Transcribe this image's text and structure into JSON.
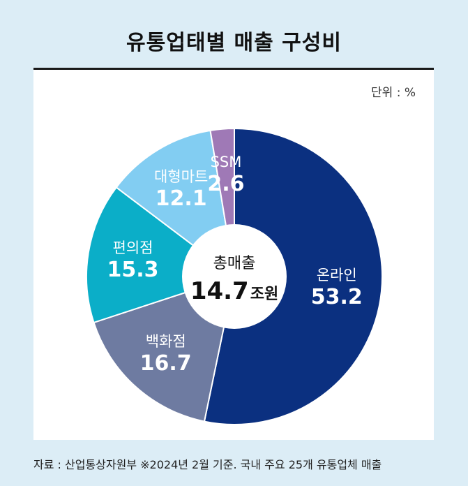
{
  "title": "유통업태별 매출 구성비",
  "unit_label": "단위 : %",
  "center": {
    "label": "총매출",
    "value": "14.7",
    "unit": "조원"
  },
  "source": "자료 : 산업통상자원부 ※2024년 2월 기준. 국내 주요 25개 유통업체 매출",
  "chart_data": {
    "type": "pie",
    "donut": true,
    "start_angle_deg": 0,
    "direction": "clockwise",
    "slices": [
      {
        "label": "온라인",
        "value": 53.2,
        "color": "#0b3080",
        "value_text": "53.2"
      },
      {
        "label": "백화점",
        "value": 16.7,
        "color": "#6e7ba1",
        "value_text": "16.7"
      },
      {
        "label": "편의점",
        "value": 15.3,
        "color": "#0baec8",
        "value_text": "15.3"
      },
      {
        "label": "대형마트",
        "value": 12.1,
        "color": "#82cdf2",
        "value_text": "12.1"
      },
      {
        "label": "SSM",
        "value": 2.6,
        "color": "#9f79b6",
        "value_text": "2.6"
      }
    ]
  }
}
